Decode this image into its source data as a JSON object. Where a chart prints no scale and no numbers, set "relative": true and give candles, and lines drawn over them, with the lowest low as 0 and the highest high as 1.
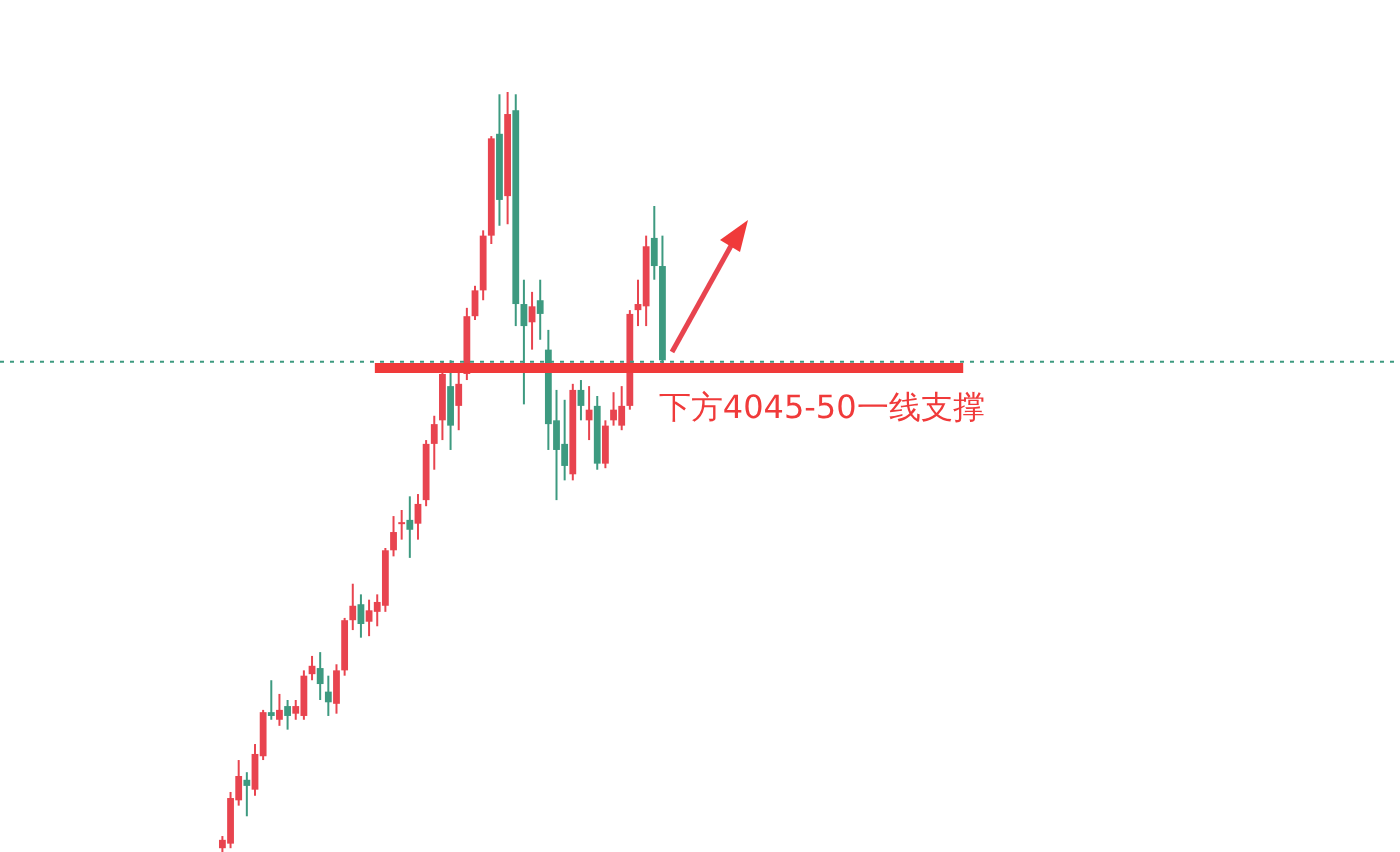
{
  "chart_data": {
    "type": "candlestick",
    "relative": true,
    "tick_labels": false,
    "categories": [
      null,
      null,
      null,
      null,
      null,
      null,
      null,
      null,
      null,
      null,
      null,
      null,
      null,
      null,
      null,
      null,
      null,
      null,
      null,
      null,
      null,
      null,
      null,
      null,
      null,
      null,
      null,
      null,
      null,
      null,
      null,
      null,
      null,
      null,
      null,
      null,
      null,
      null,
      null,
      null,
      null,
      null,
      null,
      null,
      null,
      null,
      null,
      null,
      null,
      null,
      null,
      null,
      null,
      null,
      null
    ],
    "ohlc": [
      [
        0.005,
        0.021,
        0,
        0.016
      ],
      [
        0.011,
        0.079,
        0.005,
        0.071
      ],
      [
        0.068,
        0.121,
        0.061,
        0.1
      ],
      [
        0.095,
        0.105,
        0.047,
        0.087
      ],
      [
        0.082,
        0.142,
        0.074,
        0.129
      ],
      [
        0.126,
        0.187,
        0.121,
        0.184
      ],
      [
        0.184,
        0.226,
        0.174,
        0.179
      ],
      [
        0.174,
        0.208,
        0.166,
        0.187
      ],
      [
        0.192,
        0.2,
        0.161,
        0.179
      ],
      [
        0.182,
        0.2,
        0.174,
        0.192
      ],
      [
        0.179,
        0.239,
        0.174,
        0.232
      ],
      [
        0.234,
        0.258,
        0.226,
        0.245
      ],
      [
        0.242,
        0.263,
        0.2,
        0.221
      ],
      [
        0.211,
        0.232,
        0.179,
        0.197
      ],
      [
        0.195,
        0.247,
        0.182,
        0.239
      ],
      [
        0.239,
        0.308,
        0.232,
        0.305
      ],
      [
        0.305,
        0.353,
        0.292,
        0.324
      ],
      [
        0.326,
        0.339,
        0.282,
        0.3
      ],
      [
        0.303,
        0.332,
        0.284,
        0.318
      ],
      [
        0.316,
        0.339,
        0.297,
        0.329
      ],
      [
        0.324,
        0.4,
        0.316,
        0.397
      ],
      [
        0.397,
        0.442,
        0.389,
        0.421
      ],
      [
        0.432,
        0.45,
        0.411,
        0.434
      ],
      [
        0.437,
        0.468,
        0.387,
        0.424
      ],
      [
        0.432,
        0.471,
        0.411,
        0.458
      ],
      [
        0.463,
        0.542,
        0.455,
        0.537
      ],
      [
        0.537,
        0.574,
        0.503,
        0.563
      ],
      [
        0.568,
        0.645,
        0.542,
        0.629
      ],
      [
        0.613,
        0.647,
        0.529,
        0.561
      ],
      [
        0.587,
        0.632,
        0.555,
        0.616
      ],
      [
        0.629,
        0.716,
        0.621,
        0.705
      ],
      [
        0.705,
        0.745,
        0.7,
        0.739
      ],
      [
        0.739,
        0.818,
        0.726,
        0.811
      ],
      [
        0.811,
        0.942,
        0.8,
        0.939
      ],
      [
        0.945,
        0.997,
        0.824,
        0.858
      ],
      [
        0.863,
        1,
        0.826,
        0.971
      ],
      [
        0.976,
        0.997,
        0.692,
        0.721
      ],
      [
        0.721,
        0.753,
        0.589,
        0.692
      ],
      [
        0.697,
        0.737,
        0.661,
        0.718
      ],
      [
        0.726,
        0.753,
        0.674,
        0.708
      ],
      [
        0.661,
        0.687,
        0.529,
        0.563
      ],
      [
        0.568,
        0.608,
        0.463,
        0.529
      ],
      [
        0.537,
        0.595,
        0.489,
        0.508
      ],
      [
        0.497,
        0.616,
        0.489,
        0.608
      ],
      [
        0.608,
        0.621,
        0.568,
        0.587
      ],
      [
        0.568,
        0.613,
        0.542,
        0.582
      ],
      [
        0.587,
        0.6,
        0.503,
        0.511
      ],
      [
        0.511,
        0.568,
        0.505,
        0.561
      ],
      [
        0.568,
        0.605,
        0.561,
        0.582
      ],
      [
        0.561,
        0.613,
        0.555,
        0.587
      ],
      [
        0.587,
        0.713,
        0.582,
        0.708
      ],
      [
        0.713,
        0.753,
        0.692,
        0.721
      ],
      [
        0.718,
        0.811,
        0.692,
        0.797
      ],
      [
        0.808,
        0.85,
        0.753,
        0.771
      ],
      [
        0.771,
        0.811,
        0.642,
        0.647
      ]
    ],
    "ref_lines": [
      {
        "axis": "y",
        "value": 0.645,
        "color": "#3d9a80",
        "line_style": "dotted"
      },
      {
        "axis": "y",
        "value": 0.637,
        "label": "下方4045-50一线支撑",
        "color": "#f03a3a",
        "line_style": "solid"
      }
    ]
  }
}
